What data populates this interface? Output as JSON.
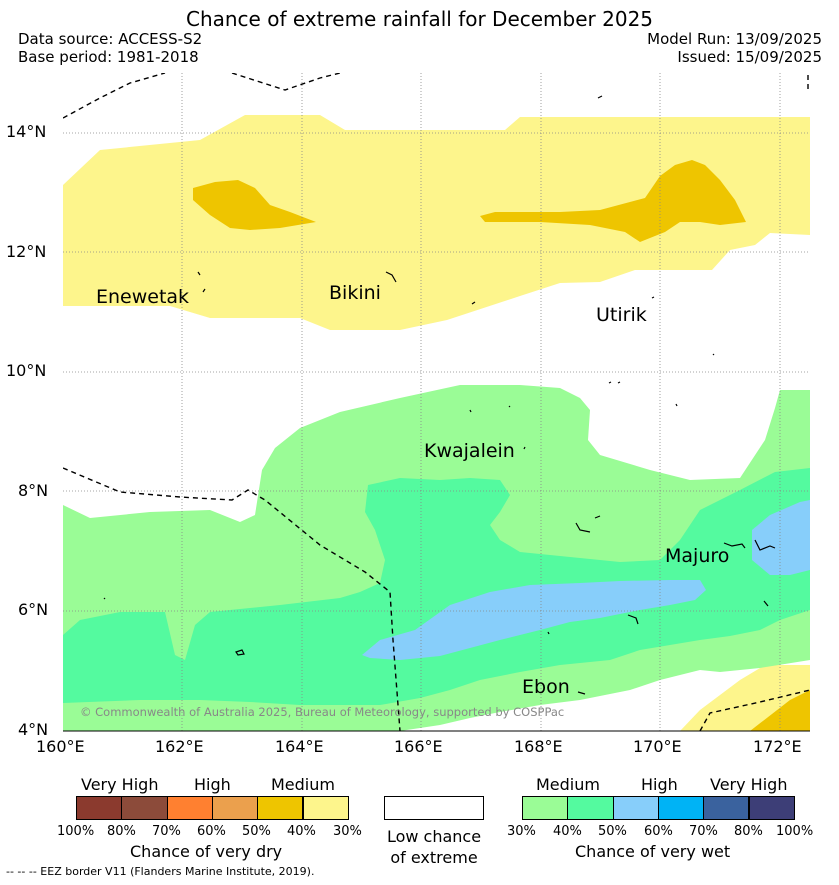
{
  "header": {
    "title": "Chance of extreme rainfall for December 2025",
    "data_source": "Data source: ACCESS-S2",
    "base_period": "Base period: 1981-2018",
    "model_run": "Model Run: 13/09/2025",
    "issued": "Issued: 15/09/2025"
  },
  "map": {
    "lat_labels": [
      "14°N",
      "12°N",
      "10°N",
      "8°N",
      "6°N",
      "4°N"
    ],
    "lon_labels": [
      "160°E",
      "162°E",
      "164°E",
      "166°E",
      "168°E",
      "170°E",
      "172°E"
    ],
    "places": [
      "Enewetak",
      "Bikini",
      "Utirik",
      "Kwajalein",
      "Majuro",
      "Ebon"
    ],
    "copyright": "© Commonwealth of Australia 2025, Bureau of Meteorology, supported by COSPPac"
  },
  "legend": {
    "dry": {
      "categories": [
        "Very High",
        "High",
        "Medium"
      ],
      "ticks": [
        "100%",
        "80%",
        "70%",
        "60%",
        "50%",
        "40%",
        "30%"
      ],
      "colors": [
        "#8b3a2e",
        "#8c4b3a",
        "#ff8030",
        "#eba04d",
        "#eec500",
        "#fdf58c"
      ],
      "title": "Chance of very dry"
    },
    "neutral": {
      "label_line1": "Low chance",
      "label_line2": "of extreme",
      "color": "#ffffff"
    },
    "wet": {
      "categories": [
        "Medium",
        "High",
        "Very High"
      ],
      "ticks": [
        "30%",
        "40%",
        "50%",
        "60%",
        "70%",
        "80%",
        "100%"
      ],
      "colors": [
        "#9afc96",
        "#54fa9f",
        "#87cefa",
        "#00b3f5",
        "#3a629e",
        "#3d3e77"
      ],
      "title": "Chance of very wet"
    },
    "eez_note": "-- -- -- EEZ border V11 (Flanders Marine Institute, 2019)."
  }
}
